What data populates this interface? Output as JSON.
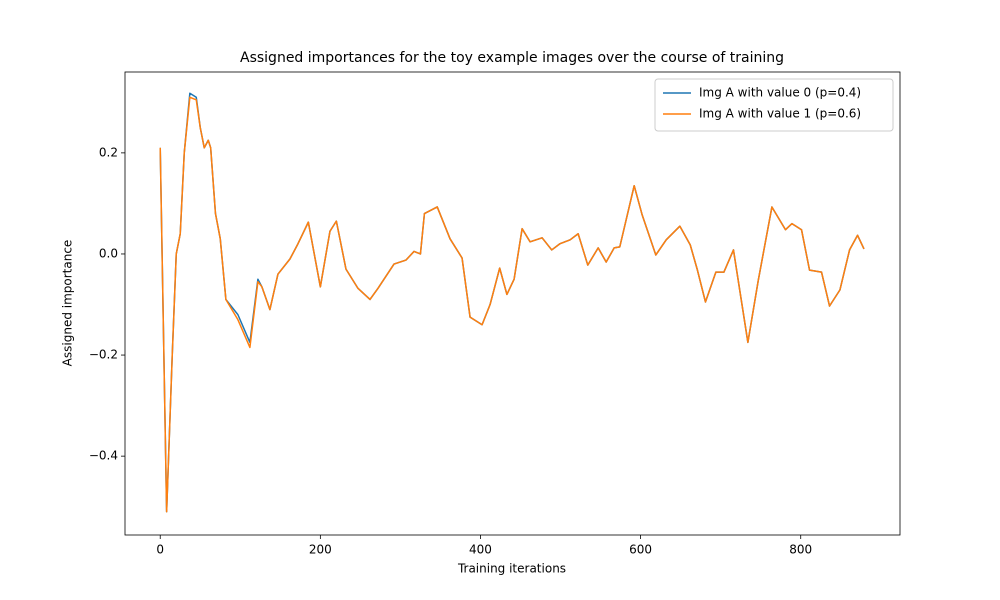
{
  "chart_data": {
    "type": "line",
    "title": "Assigned importances for the toy example images over the course of training",
    "x_label": "Training iterations",
    "y_label": "Assigned importance",
    "x": [
      0,
      8,
      15,
      20,
      25,
      30,
      37,
      45,
      50,
      55,
      60,
      63,
      69,
      75,
      82,
      97,
      112,
      122,
      127,
      137,
      147,
      162,
      172,
      185,
      200,
      212,
      220,
      232,
      247,
      262,
      272,
      292,
      307,
      317,
      325,
      330,
      346,
      362,
      377,
      387,
      402,
      412,
      424,
      433,
      442,
      452,
      462,
      477,
      489,
      499,
      512,
      522,
      534,
      547,
      557,
      567,
      574,
      592,
      602,
      619,
      632,
      649,
      662,
      671,
      681,
      694,
      704,
      716,
      734,
      747,
      764,
      781,
      789,
      801,
      811,
      826,
      836,
      849,
      861,
      871,
      879
    ],
    "series": [
      {
        "name": "Img A with value 0 (p=0.4)",
        "color": "#1f77b4",
        "values": [
          0.21,
          -0.51,
          -0.2,
          0.0,
          0.04,
          0.2,
          0.318,
          0.31,
          0.25,
          0.21,
          0.225,
          0.21,
          0.08,
          0.03,
          -0.09,
          -0.12,
          -0.175,
          -0.05,
          -0.065,
          -0.11,
          -0.04,
          -0.01,
          0.02,
          0.063,
          -0.065,
          0.045,
          0.065,
          -0.03,
          -0.068,
          -0.09,
          -0.068,
          -0.02,
          -0.012,
          0.005,
          0.0,
          0.08,
          0.093,
          0.03,
          -0.008,
          -0.125,
          -0.14,
          -0.1,
          -0.028,
          -0.08,
          -0.05,
          0.05,
          0.024,
          0.032,
          0.008,
          0.02,
          0.028,
          0.04,
          -0.022,
          0.012,
          -0.016,
          0.012,
          0.014,
          0.135,
          0.077,
          -0.002,
          0.028,
          0.055,
          0.018,
          -0.032,
          -0.095,
          -0.036,
          -0.036,
          0.008,
          -0.175,
          -0.052,
          0.093,
          0.048,
          0.06,
          0.048,
          -0.032,
          -0.036,
          -0.103,
          -0.071,
          0.008,
          0.037,
          0.01
        ]
      },
      {
        "name": "Img A with value 1 (p=0.6)",
        "color": "#ff7f0e",
        "values": [
          0.21,
          -0.51,
          -0.2,
          0.0,
          0.04,
          0.2,
          0.31,
          0.305,
          0.25,
          0.21,
          0.225,
          0.21,
          0.08,
          0.03,
          -0.09,
          -0.13,
          -0.185,
          -0.055,
          -0.065,
          -0.11,
          -0.04,
          -0.01,
          0.02,
          0.063,
          -0.065,
          0.045,
          0.065,
          -0.03,
          -0.068,
          -0.09,
          -0.068,
          -0.02,
          -0.012,
          0.005,
          0.0,
          0.08,
          0.093,
          0.03,
          -0.008,
          -0.125,
          -0.14,
          -0.1,
          -0.028,
          -0.08,
          -0.05,
          0.05,
          0.024,
          0.032,
          0.008,
          0.02,
          0.028,
          0.04,
          -0.022,
          0.012,
          -0.016,
          0.012,
          0.014,
          0.135,
          0.077,
          -0.002,
          0.028,
          0.055,
          0.018,
          -0.032,
          -0.095,
          -0.036,
          -0.036,
          0.008,
          -0.175,
          -0.052,
          0.093,
          0.048,
          0.06,
          0.048,
          -0.032,
          -0.036,
          -0.103,
          -0.071,
          0.008,
          0.037,
          0.01
        ]
      }
    ],
    "xlim": [
      -44,
      924
    ],
    "ylim": [
      -0.556,
      0.36
    ],
    "xticks": [
      0,
      200,
      400,
      600,
      800
    ],
    "yticks": [
      {
        "value": -0.4,
        "label": "−0.4"
      },
      {
        "value": -0.2,
        "label": "−0.2"
      },
      {
        "value": 0,
        "label": "0.0"
      },
      0.2
    ],
    "legend": "upper right",
    "grid": false
  }
}
